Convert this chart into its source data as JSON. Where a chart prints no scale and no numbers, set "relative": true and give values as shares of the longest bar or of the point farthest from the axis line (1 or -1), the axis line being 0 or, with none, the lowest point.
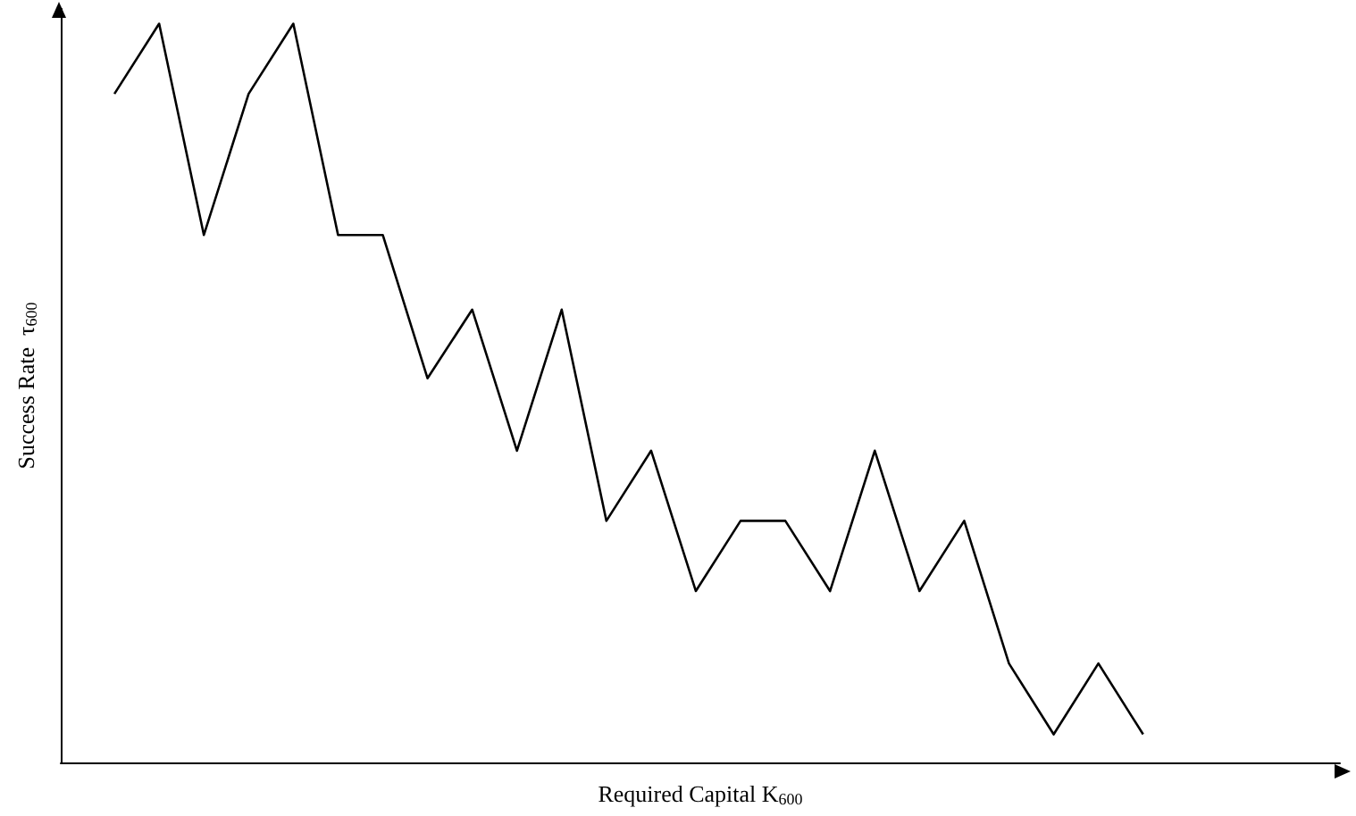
{
  "chart_data": {
    "type": "line",
    "xlabel": "Required Capital K$_{600}$",
    "ylabel": "Success Rate  τ$_{600}$",
    "relative": true,
    "marker": "none",
    "color": "#000000",
    "categories": [
      null,
      null,
      null,
      null,
      null,
      null,
      null,
      null,
      null,
      null,
      null,
      null,
      null,
      null,
      null,
      null,
      null,
      null,
      null,
      null,
      null,
      null,
      null,
      null
    ],
    "values": [
      0.905,
      1,
      0.714,
      0.905,
      1,
      0.714,
      0.714,
      0.52,
      0.613,
      0.422,
      0.613,
      0.327,
      0.422,
      0.232,
      0.327,
      0.327,
      0.232,
      0.422,
      0.232,
      0.327,
      0.134,
      0.038,
      0.134,
      0.038
    ]
  }
}
